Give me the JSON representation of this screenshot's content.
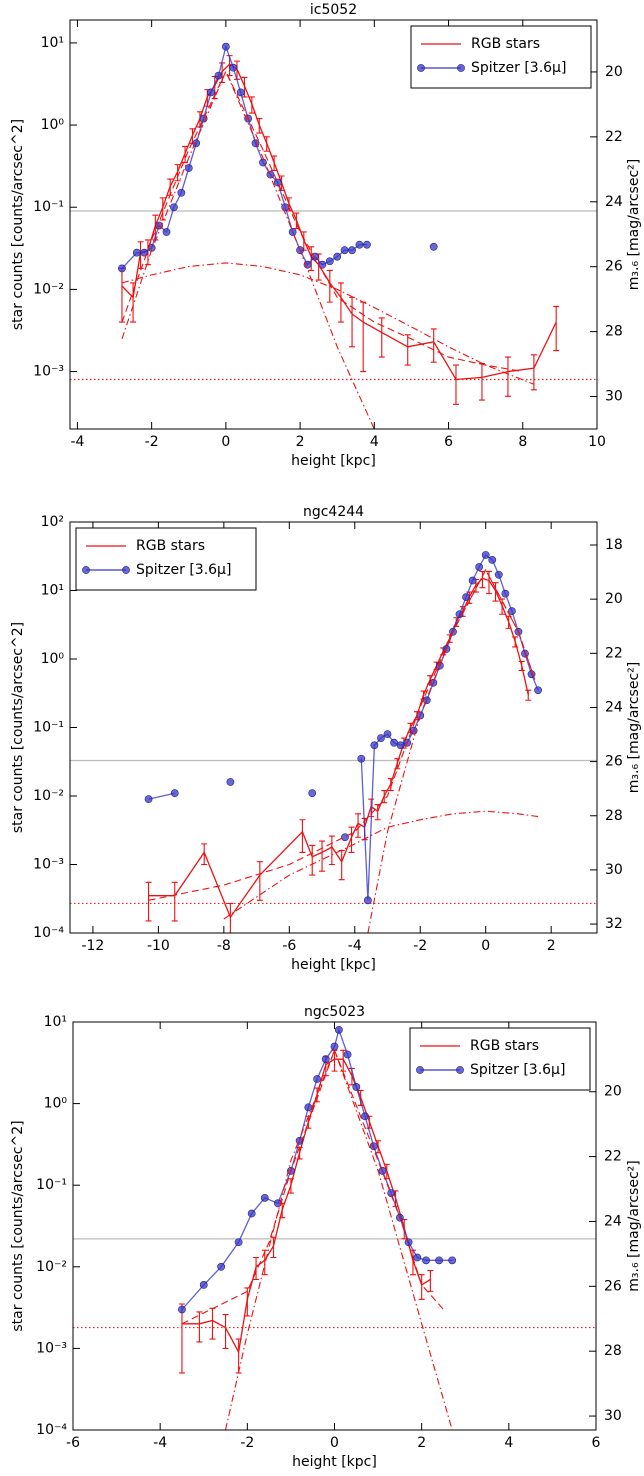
{
  "chart_data": [
    {
      "type": "line",
      "title": "ic5052",
      "xlabel": "height [kpc]",
      "ylabel": "star counts [counts/arcsec^2]",
      "y2label": "m₃.₆ [mag/arcsec²]",
      "log_y": true,
      "legend": "upper right",
      "xlim": [
        -4.2,
        10
      ],
      "xticks": [
        -4,
        -2,
        0,
        2,
        4,
        6,
        8,
        10
      ],
      "ylim": [
        0.0002,
        19
      ],
      "yticks": [
        {
          "value": 0.001,
          "label": "10⁻³"
        },
        {
          "value": 0.01,
          "label": "10⁻²"
        },
        {
          "value": 0.1,
          "label": "10⁻¹"
        },
        {
          "value": 1,
          "label": "10⁰"
        },
        {
          "value": 10,
          "label": "10¹"
        }
      ],
      "y2lim": [
        31.0,
        18.4
      ],
      "y2ticks": [
        20,
        22,
        24,
        26,
        28,
        30
      ],
      "hlines": [
        {
          "value": 0.09,
          "color": "#bbbbbb",
          "style": "solid"
        },
        {
          "value": 0.0008,
          "color": "#ee2222",
          "style": "dotted"
        }
      ],
      "series": [
        {
          "name": "RGB stars",
          "color": "#ee1111",
          "style": "solid",
          "marker": false,
          "x": [
            -2.8,
            -2.5,
            -2.3,
            -2.1,
            -1.9,
            -1.7,
            -1.5,
            -1.3,
            -1.1,
            -0.9,
            -0.7,
            -0.5,
            -0.3,
            -0.1,
            0.1,
            0.3,
            0.5,
            0.7,
            0.9,
            1.1,
            1.3,
            1.5,
            1.7,
            1.9,
            2.1,
            2.3,
            2.5,
            2.8,
            3.1,
            3.4,
            3.7,
            4.2,
            4.9,
            5.6,
            6.2,
            6.9,
            7.6,
            8.3,
            8.9
          ],
          "values": [
            0.011,
            0.008,
            0.028,
            0.03,
            0.06,
            0.1,
            0.18,
            0.27,
            0.45,
            0.75,
            1.2,
            2.2,
            3,
            4.5,
            5.5,
            4.8,
            3,
            1.8,
            1,
            0.6,
            0.35,
            0.2,
            0.11,
            0.07,
            0.04,
            0.025,
            0.02,
            0.012,
            0.008,
            0.005,
            0.004,
            0.003,
            0.002,
            0.0023,
            0.0008,
            0.00085,
            0.001,
            0.0011,
            0.004
          ],
          "errors": [
            0.007,
            0.004,
            0.01,
            0.01,
            0.02,
            0.03,
            0.04,
            0.06,
            0.1,
            0.15,
            0.25,
            0.5,
            0.9,
            1.2,
            1.5,
            1.2,
            0.8,
            0.4,
            0.2,
            0.12,
            0.07,
            0.04,
            0.02,
            0.015,
            0.01,
            0.008,
            0.007,
            0.005,
            0.004,
            0.003,
            0.003,
            0.0015,
            0.0008,
            0.001,
            0.0004,
            0.0004,
            0.0005,
            0.0005,
            0.0022
          ]
        },
        {
          "name": "Spitzer [3.6μ]",
          "color": "#3636c8",
          "style": "solid",
          "marker": true,
          "x": [
            -2.8,
            -2.4,
            -2.2,
            -2.0,
            -1.8,
            -1.6,
            -1.4,
            -1.2,
            -1.0,
            -0.8,
            -0.6,
            -0.4,
            -0.2,
            0,
            0.2,
            0.4,
            0.6,
            0.8,
            1.0,
            1.2,
            1.4,
            1.6,
            1.8,
            2.0,
            2.2,
            2.4,
            2.6,
            2.8,
            3.0,
            3.2,
            3.4,
            3.6,
            3.8,
            null,
            5.6
          ],
          "values": [
            0.018,
            0.028,
            0.028,
            0.032,
            0.06,
            0.05,
            0.1,
            0.15,
            0.3,
            0.6,
            1.2,
            2.5,
            4,
            9,
            5,
            2.5,
            1.2,
            0.6,
            0.35,
            0.25,
            0.2,
            0.1,
            0.05,
            0.03,
            0.02,
            0.025,
            0.02,
            0.022,
            0.025,
            0.03,
            0.03,
            0.035,
            0.035,
            null,
            0.033
          ]
        },
        {
          "color": "#ee1111",
          "style": "dashed",
          "marker": false,
          "x": [
            -2.8,
            -2,
            -1,
            0,
            1,
            2,
            3,
            4,
            5,
            6,
            7,
            8
          ],
          "values": [
            0.004,
            0.04,
            0.5,
            4.5,
            0.5,
            0.05,
            0.008,
            0.004,
            0.0025,
            0.0015,
            0.0012,
            0.001
          ]
        },
        {
          "color": "#ee1111",
          "style": "dashdot",
          "marker": false,
          "x": [
            -2.8,
            -2,
            -1,
            0,
            1,
            2,
            3,
            4,
            5,
            6,
            7,
            8.3
          ],
          "values": [
            0.012,
            0.015,
            0.019,
            0.021,
            0.019,
            0.015,
            0.01,
            0.006,
            0.0035,
            0.002,
            0.0012,
            0.0007
          ]
        },
        {
          "color": "#ee1111",
          "style": "dashdot",
          "marker": false,
          "x": [
            -2.8,
            -2,
            -1,
            0,
            1,
            2,
            3,
            3.6,
            4
          ],
          "values": [
            0.0025,
            0.03,
            0.4,
            4.5,
            0.4,
            0.03,
            0.002,
            0.0005,
            0.0002
          ]
        }
      ]
    },
    {
      "type": "line",
      "title": "ngc4244",
      "xlabel": "height [kpc]",
      "ylabel": "star counts [counts/arcsec^2]",
      "y2label": "m₃.₆ [mag/arcsec²]",
      "log_y": true,
      "legend": "upper left",
      "xlim": [
        -12.7,
        3.4
      ],
      "xticks": [
        -12,
        -10,
        -8,
        -6,
        -4,
        -2,
        0,
        2
      ],
      "ylim": [
        0.0001,
        100
      ],
      "yticks": [
        {
          "value": 0.0001,
          "label": "10⁻⁴"
        },
        {
          "value": 0.001,
          "label": "10⁻³"
        },
        {
          "value": 0.01,
          "label": "10⁻²"
        },
        {
          "value": 0.1,
          "label": "10⁻¹"
        },
        {
          "value": 1,
          "label": "10⁰"
        },
        {
          "value": 10,
          "label": "10¹"
        },
        {
          "value": 100,
          "label": "10²"
        }
      ],
      "y2lim": [
        32.33,
        17.15
      ],
      "y2ticks": [
        18,
        20,
        22,
        24,
        26,
        28,
        30,
        32
      ],
      "hlines": [
        {
          "value": 0.033,
          "color": "#bbbbbb",
          "style": "solid"
        },
        {
          "value": 0.00027,
          "color": "#ee2222",
          "style": "dotted"
        }
      ],
      "series": [
        {
          "name": "RGB stars",
          "color": "#ee1111",
          "style": "solid",
          "marker": false,
          "x": [
            -10.3,
            -9.5,
            -8.6,
            -7.8,
            -6.9,
            -5.6,
            -5.3,
            -5.0,
            -4.7,
            -4.4,
            -4.1,
            -3.9,
            -3.7,
            -3.5,
            -3.3,
            -3.1,
            -2.9,
            -2.7,
            -2.5,
            -2.3,
            -2.1,
            -1.9,
            -1.7,
            -1.5,
            -1.3,
            -1.1,
            -0.9,
            -0.7,
            -0.5,
            -0.3,
            -0.1,
            0.1,
            0.3,
            0.5,
            0.7,
            0.9,
            1.1,
            1.3
          ],
          "values": [
            0.00035,
            0.00035,
            0.0015,
            0.00017,
            0.0007,
            0.003,
            0.0013,
            0.0015,
            0.0018,
            0.0011,
            0.0025,
            0.004,
            0.0035,
            0.007,
            0.006,
            0.01,
            0.015,
            0.03,
            0.06,
            0.1,
            0.15,
            0.3,
            0.5,
            0.8,
            1.3,
            2,
            3.5,
            5,
            8,
            12,
            15,
            14,
            10,
            6,
            3.5,
            1.8,
            0.8,
            0.3
          ],
          "errors": [
            0.0002,
            0.0002,
            0.0005,
            0.0001,
            0.0004,
            0.0015,
            0.0006,
            0.0007,
            0.0008,
            0.0005,
            0.001,
            0.0015,
            0.0012,
            0.002,
            0.0015,
            0.002,
            0.003,
            0.005,
            0.01,
            0.015,
            0.02,
            0.04,
            0.07,
            0.1,
            0.15,
            0.25,
            0.5,
            0.8,
            1.5,
            2.5,
            4,
            5,
            3,
            1.5,
            0.7,
            0.3,
            0.12,
            0.05
          ]
        },
        {
          "name": "Spitzer [3.6μ]",
          "color": "#3636c8",
          "style": "solid",
          "marker": true,
          "x": [
            -10.3,
            -9.5,
            null,
            -7.8,
            null,
            -5.3,
            null,
            -4.3,
            null,
            -3.8,
            -3.6,
            -3.4,
            -3.2,
            -3.0,
            -2.8,
            -2.6,
            -2.4,
            -2.2,
            -2.0,
            -1.8,
            -1.6,
            -1.4,
            -1.2,
            -1.0,
            -0.8,
            -0.6,
            -0.4,
            -0.2,
            0,
            0.2,
            0.4,
            0.6,
            0.8,
            1.0,
            1.2,
            1.4,
            1.6
          ],
          "values": [
            0.009,
            0.011,
            null,
            0.016,
            null,
            0.011,
            null,
            0.0025,
            null,
            0.035,
            0.0003,
            0.055,
            0.07,
            0.08,
            0.06,
            0.055,
            0.06,
            0.09,
            0.15,
            0.25,
            0.45,
            0.8,
            1.4,
            2.5,
            4.5,
            8,
            14,
            22,
            33,
            28,
            17,
            9,
            5,
            2.5,
            1.2,
            0.6,
            0.35
          ]
        },
        {
          "color": "#ee1111",
          "style": "dashed",
          "marker": false,
          "x": [
            -10.3,
            -8,
            -6,
            -4,
            -3,
            -2,
            -1,
            0,
            1,
            1.5
          ],
          "values": [
            0.0003,
            0.0005,
            0.001,
            0.003,
            0.01,
            0.2,
            2.5,
            20,
            2.5,
            0.5
          ]
        },
        {
          "color": "#ee1111",
          "style": "dashdot",
          "marker": false,
          "x": [
            -8,
            -6,
            -4,
            -3,
            -2,
            -1,
            0,
            1,
            1.6
          ],
          "values": [
            0.00016,
            0.0007,
            0.002,
            0.0035,
            0.0045,
            0.0055,
            0.006,
            0.0055,
            0.005
          ]
        },
        {
          "color": "#ee1111",
          "style": "dashdot",
          "marker": false,
          "x": [
            -3.6,
            -3,
            -2,
            -1,
            0,
            1,
            1.5
          ],
          "values": [
            0.0001,
            0.003,
            0.15,
            2.5,
            20,
            2.5,
            0.5
          ]
        }
      ]
    },
    {
      "type": "line",
      "title": "ngc5023",
      "xlabel": "height [kpc]",
      "ylabel": "star counts [counts/arcsec^2]",
      "y2label": "m₃.₆ [mag/arcsec²]",
      "log_y": true,
      "legend": "upper right",
      "xlim": [
        -6,
        6
      ],
      "xticks": [
        -6,
        -4,
        -2,
        0,
        2,
        4,
        6
      ],
      "ylim": [
        0.0001,
        10
      ],
      "yticks": [
        {
          "value": 0.0001,
          "label": "10⁻⁴"
        },
        {
          "value": 0.001,
          "label": "10⁻³"
        },
        {
          "value": 0.01,
          "label": "10⁻²"
        },
        {
          "value": 0.1,
          "label": "10⁻¹"
        },
        {
          "value": 1,
          "label": "10⁰"
        },
        {
          "value": 10,
          "label": "10¹"
        }
      ],
      "y2lim": [
        30.43,
        17.85
      ],
      "y2ticks": [
        20,
        22,
        24,
        26,
        28,
        30
      ],
      "hlines": [
        {
          "value": 0.022,
          "color": "#bbbbbb",
          "style": "solid"
        },
        {
          "value": 0.0018,
          "color": "#ee2222",
          "style": "dotted"
        }
      ],
      "series": [
        {
          "name": "RGB stars",
          "color": "#ee1111",
          "style": "solid",
          "marker": false,
          "x": [
            -3.5,
            -3.1,
            -2.8,
            -2.5,
            -2.2,
            -2.0,
            -1.8,
            -1.6,
            -1.4,
            -1.2,
            -1.0,
            -0.8,
            -0.6,
            -0.4,
            -0.2,
            0,
            0.2,
            0.4,
            0.6,
            0.8,
            1.0,
            1.2,
            1.4,
            1.6,
            1.8,
            2.0,
            2.2
          ],
          "values": [
            0.002,
            0.002,
            0.0022,
            0.0018,
            0.0009,
            0.004,
            0.01,
            0.012,
            0.018,
            0.05,
            0.1,
            0.25,
            0.6,
            1.3,
            3,
            3.5,
            3.5,
            2.2,
            1.2,
            0.6,
            0.3,
            0.15,
            0.07,
            0.03,
            0.012,
            0.006,
            0.007
          ],
          "errors": [
            0.0015,
            0.0008,
            0.0009,
            0.0008,
            0.0004,
            0.0015,
            0.003,
            0.004,
            0.005,
            0.01,
            0.02,
            0.04,
            0.1,
            0.25,
            0.8,
            1,
            1,
            0.5,
            0.25,
            0.1,
            0.05,
            0.03,
            0.015,
            0.008,
            0.004,
            0.002,
            0.002
          ]
        },
        {
          "name": "Spitzer [3.6μ]",
          "color": "#3636c8",
          "style": "solid",
          "marker": true,
          "x": [
            -3.5,
            -3.0,
            -2.6,
            -2.2,
            -1.9,
            -1.6,
            -1.3,
            -1.0,
            -0.8,
            -0.6,
            -0.4,
            -0.2,
            0,
            0.1,
            0.3,
            0.5,
            0.7,
            0.9,
            1.1,
            1.3,
            1.5,
            1.7,
            1.9,
            2.1,
            2.4,
            2.7
          ],
          "values": [
            0.003,
            0.006,
            0.01,
            0.02,
            0.045,
            0.07,
            0.06,
            0.15,
            0.35,
            0.9,
            2,
            3.5,
            5,
            8,
            4,
            1.6,
            0.7,
            0.3,
            0.15,
            0.08,
            0.04,
            0.02,
            0.013,
            0.012,
            0.012,
            0.012
          ]
        },
        {
          "color": "#ee1111",
          "style": "dashed",
          "marker": false,
          "x": [
            -3.5,
            -2,
            -1.5,
            -1,
            0,
            1,
            1.5,
            2,
            2.5
          ],
          "values": [
            0.002,
            0.005,
            0.02,
            0.15,
            4.5,
            0.2,
            0.04,
            0.006,
            0.003
          ]
        },
        {
          "color": "#ee1111",
          "style": "dashdot",
          "marker": false,
          "x": [
            -2.5,
            -2,
            -1,
            0,
            1,
            2,
            2.7
          ],
          "values": [
            0.0001,
            0.0015,
            0.2,
            4.5,
            0.15,
            0.002,
            0.0001
          ]
        }
      ]
    }
  ]
}
